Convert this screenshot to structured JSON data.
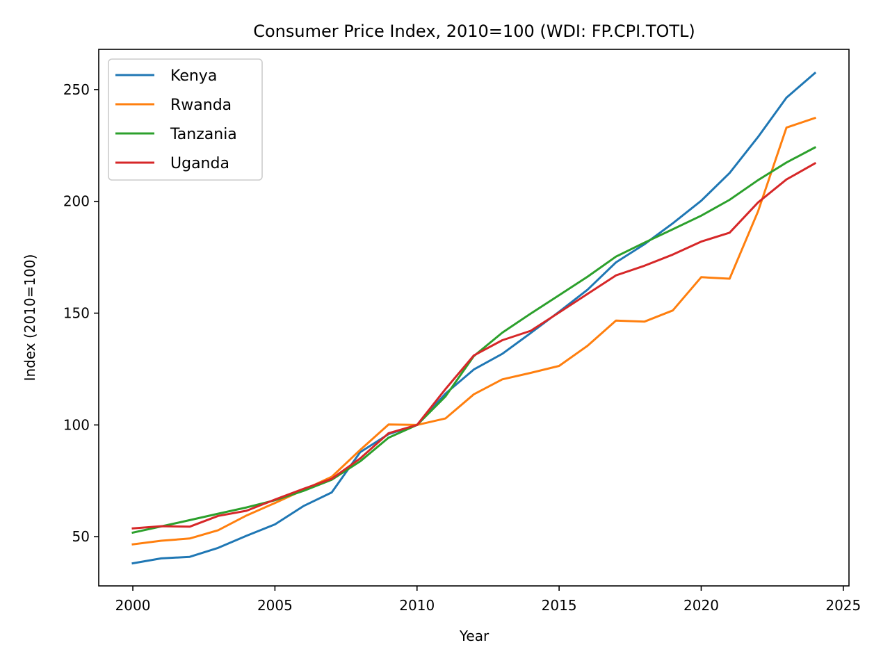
{
  "chart_data": {
    "type": "line",
    "title": "Consumer Price Index, 2010=100 (WDI: FP.CPI.TOTL)",
    "xlabel": "Year",
    "ylabel": "Index (2010=100)",
    "xlim": [
      1998.8,
      2025.2
    ],
    "ylim": [
      28,
      268
    ],
    "xticks": [
      2000,
      2005,
      2010,
      2015,
      2020,
      2025
    ],
    "yticks": [
      50,
      100,
      150,
      200,
      250
    ],
    "grid": false,
    "legend_position": "top-left",
    "x": [
      2000,
      2001,
      2002,
      2003,
      2004,
      2005,
      2006,
      2007,
      2008,
      2009,
      2010,
      2011,
      2012,
      2013,
      2014,
      2015,
      2016,
      2017,
      2018,
      2019,
      2020,
      2021,
      2022,
      2023,
      2024
    ],
    "series": [
      {
        "name": "Kenya",
        "color": "#1f77b4",
        "values": [
          38.1,
          40.3,
          41.0,
          45.0,
          50.4,
          55.5,
          63.7,
          69.8,
          87.8,
          95.9,
          100.0,
          114.0,
          124.8,
          131.8,
          141.1,
          150.6,
          160.5,
          172.7,
          180.8,
          190.2,
          200.3,
          212.7,
          228.8,
          246.4,
          257.4
        ]
      },
      {
        "name": "Rwanda",
        "color": "#ff7f0e",
        "values": [
          46.6,
          48.2,
          49.2,
          52.9,
          59.5,
          65.1,
          70.9,
          76.8,
          88.8,
          100.2,
          100.0,
          102.9,
          113.7,
          120.4,
          123.3,
          126.4,
          135.4,
          146.7,
          146.2,
          151.2,
          166.1,
          165.4,
          195.5,
          233.0,
          237.3
        ]
      },
      {
        "name": "Tanzania",
        "color": "#2ca02c",
        "values": [
          51.8,
          54.6,
          57.4,
          60.3,
          63.1,
          66.3,
          70.5,
          75.5,
          83.7,
          94.3,
          100.0,
          112.7,
          130.8,
          141.3,
          149.8,
          158.0,
          166.3,
          175.3,
          181.5,
          187.5,
          193.6,
          200.7,
          209.5,
          217.4,
          224.1
        ]
      },
      {
        "name": "Uganda",
        "color": "#d62728",
        "values": [
          53.7,
          54.7,
          54.5,
          59.3,
          61.6,
          66.6,
          71.4,
          75.9,
          85.0,
          96.3,
          100.0,
          116.0,
          131.1,
          137.9,
          142.1,
          150.3,
          158.6,
          166.9,
          171.2,
          176.2,
          182.0,
          186.0,
          199.5,
          209.8,
          217.0
        ]
      }
    ]
  }
}
